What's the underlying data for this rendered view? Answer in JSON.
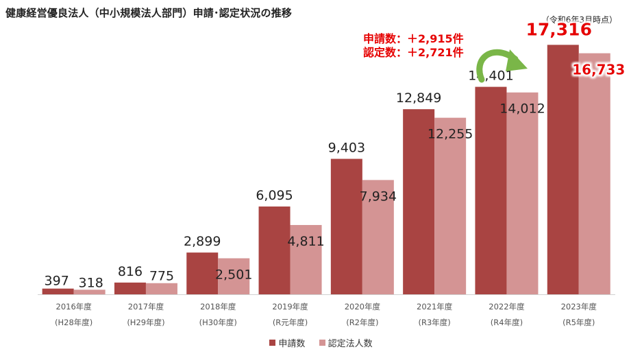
{
  "title": "健康経営優良法人（中小規模法人部門）申請･認定状況の推移",
  "as_of": "（令和6年3月時点）",
  "annotation": {
    "line1": "申請数：＋2,915件",
    "line2": "認定数：＋2,721件"
  },
  "colors": {
    "applications": "#a94442",
    "certified": "#d49494",
    "highlight": "#e60000",
    "arrow": "#7ab648"
  },
  "chart_data": {
    "type": "bar",
    "categories": [
      "2016年度",
      "2017年度",
      "2018年度",
      "2019年度",
      "2020年度",
      "2021年度",
      "2022年度",
      "2023年度"
    ],
    "categories_sub": [
      "(H28年度)",
      "(H29年度)",
      "(H30年度)",
      "(R元年度)",
      "(R2年度)",
      "(R3年度)",
      "(R4年度)",
      "(R5年度)"
    ],
    "series": [
      {
        "name": "申請数",
        "values": [
          397,
          816,
          2899,
          6095,
          9403,
          12849,
          14401,
          17316
        ],
        "labels": [
          "397",
          "816",
          "2,899",
          "6,095",
          "9,403",
          "12,849",
          "14,401",
          "17,316"
        ]
      },
      {
        "name": "認定法人数",
        "values": [
          318,
          775,
          2501,
          4811,
          7934,
          12255,
          14012,
          16733
        ],
        "labels": [
          "318",
          "775",
          "2,501",
          "4,811",
          "7,934",
          "12,255",
          "14,012",
          "16,733"
        ]
      }
    ],
    "ylim": [
      0,
      19000
    ],
    "grid": false,
    "legend": "bottom"
  }
}
